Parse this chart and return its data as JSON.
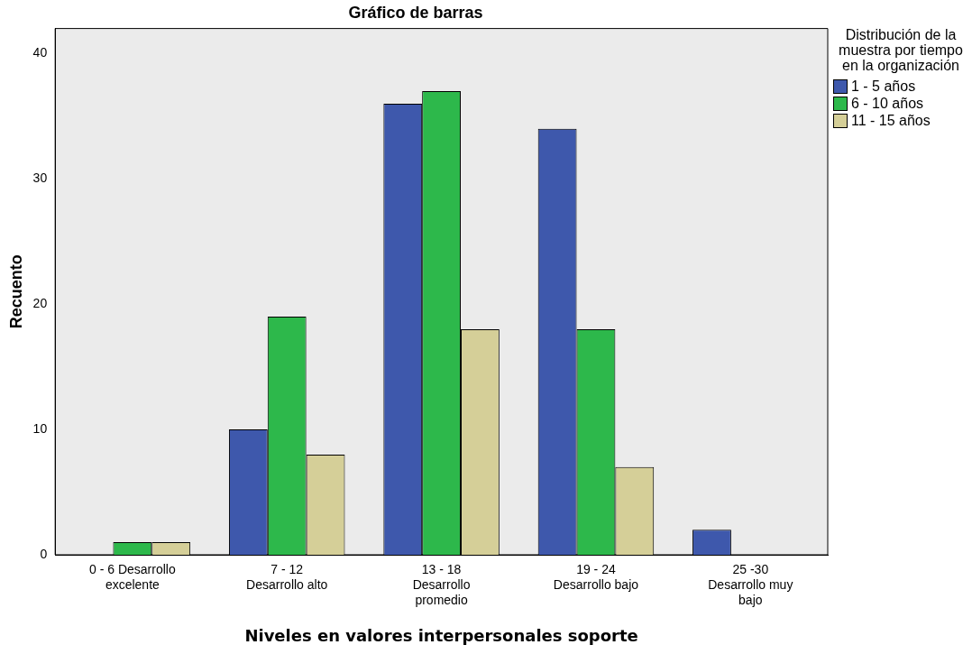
{
  "chart_data": {
    "type": "bar",
    "title": "Gráfico de barras",
    "xlabel": "Niveles en valores interpersonales soporte",
    "ylabel": "Recuento",
    "legend_title": "Distribución de la muestra por tiempo en la organización",
    "categories": [
      "0 - 6 Desarrollo excelente",
      "7 - 12 Desarrollo alto",
      "13 - 18 Desarrollo promedio",
      "19 - 24 Desarrollo bajo",
      "25 -30 Desarrollo muy bajo"
    ],
    "series": [
      {
        "name": "1 - 5 años",
        "color": "#3e58ac",
        "values": [
          0,
          10,
          36,
          34,
          2
        ]
      },
      {
        "name": "6 - 10 años",
        "color": "#2db84b",
        "values": [
          1,
          19,
          37,
          18,
          0
        ]
      },
      {
        "name": "11 - 15 años",
        "color": "#d5cf98",
        "values": [
          1,
          8,
          18,
          7,
          0
        ]
      }
    ],
    "ylim": [
      0,
      42
    ],
    "yticks": [
      0,
      10,
      20,
      30,
      40
    ],
    "grid": false,
    "legend": "right"
  }
}
